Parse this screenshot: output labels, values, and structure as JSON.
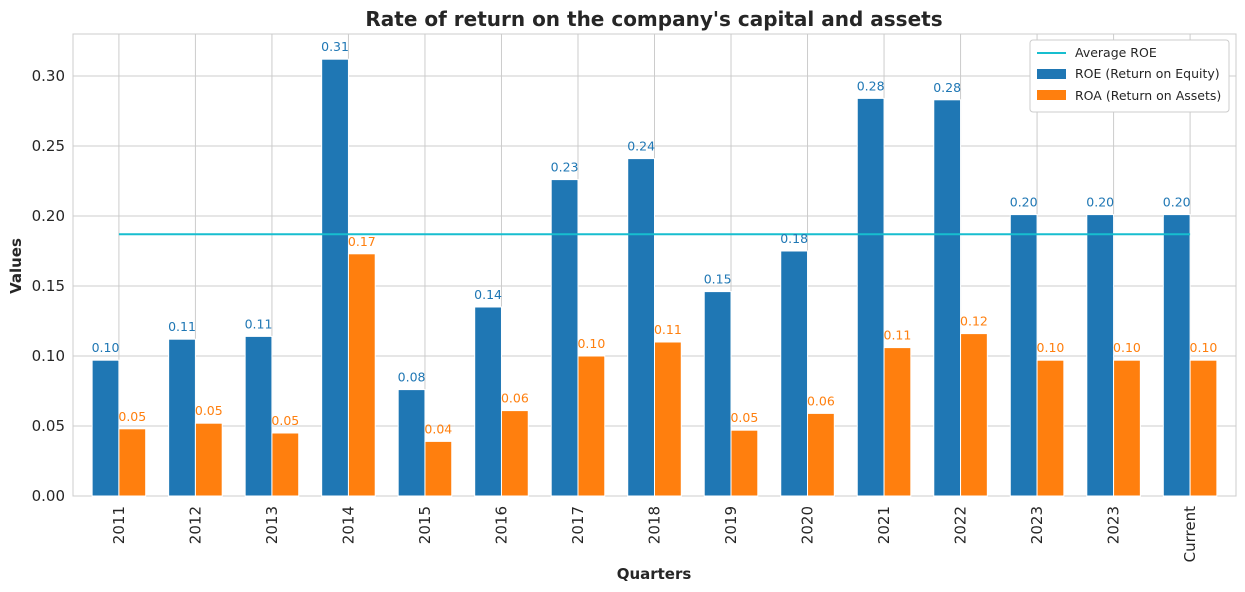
{
  "chart_data": {
    "type": "bar",
    "title": "Rate of return on the company's capital and assets",
    "xlabel": "Quarters",
    "ylabel": "Values",
    "categories": [
      "2011",
      "2012",
      "2013",
      "2014",
      "2015",
      "2016",
      "2017",
      "2018",
      "2019",
      "2020",
      "2021",
      "2022",
      "2023",
      "2023",
      "Current"
    ],
    "series": [
      {
        "name": "ROE (Return on Equity)",
        "color": "#1f77b4",
        "values": [
          0.097,
          0.112,
          0.114,
          0.312,
          0.076,
          0.135,
          0.226,
          0.241,
          0.146,
          0.175,
          0.284,
          0.283,
          0.201,
          0.201,
          0.201
        ],
        "labels": [
          "0.10",
          "0.11",
          "0.11",
          "0.31",
          "0.08",
          "0.14",
          "0.23",
          "0.24",
          "0.15",
          "0.18",
          "0.28",
          "0.28",
          "0.20",
          "0.20",
          "0.20"
        ]
      },
      {
        "name": "ROA (Return on Assets)",
        "color": "#ff7f0e",
        "values": [
          0.048,
          0.052,
          0.045,
          0.173,
          0.039,
          0.061,
          0.1,
          0.11,
          0.047,
          0.059,
          0.106,
          0.116,
          0.097,
          0.097,
          0.097
        ],
        "labels": [
          "0.05",
          "0.05",
          "0.05",
          "0.17",
          "0.04",
          "0.06",
          "0.10",
          "0.11",
          "0.05",
          "0.06",
          "0.11",
          "0.12",
          "0.10",
          "0.10",
          "0.10"
        ]
      }
    ],
    "average_line": {
      "name": "Average ROE",
      "value": 0.187,
      "color": "#17becf"
    },
    "ylim": [
      0,
      0.33
    ],
    "yticks": [
      "0.00",
      "0.05",
      "0.10",
      "0.15",
      "0.20",
      "0.25",
      "0.30"
    ],
    "ytick_values": [
      0,
      0.05,
      0.1,
      0.15,
      0.2,
      0.25,
      0.3
    ],
    "grid": true,
    "legend_position": "top-right"
  }
}
